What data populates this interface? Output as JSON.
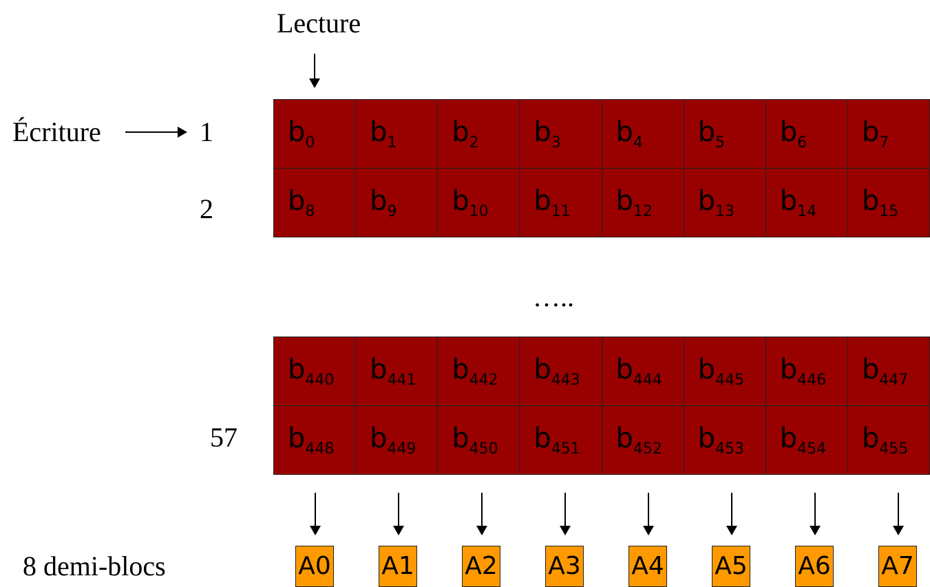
{
  "labels": {
    "read": "Lecture",
    "write": "Écriture",
    "dots": "…..",
    "halfblocks": "8 demi-blocs"
  },
  "row_labels": [
    "1",
    "2",
    "57"
  ],
  "rows_top": [
    [
      "0",
      "1",
      "2",
      "3",
      "4",
      "5",
      "6",
      "7"
    ],
    [
      "8",
      "9",
      "10",
      "11",
      "12",
      "13",
      "14",
      "15"
    ]
  ],
  "rows_bottom": [
    [
      "440",
      "441",
      "442",
      "443",
      "444",
      "445",
      "446",
      "447"
    ],
    [
      "448",
      "449",
      "450",
      "451",
      "452",
      "453",
      "454",
      "455"
    ]
  ],
  "cell_prefix": "b",
  "half_blocks": [
    "A0",
    "A1",
    "A2",
    "A3",
    "A4",
    "A5",
    "A6",
    "A7"
  ],
  "colors": {
    "cell": "#990000",
    "half_block": "#ff9900"
  }
}
